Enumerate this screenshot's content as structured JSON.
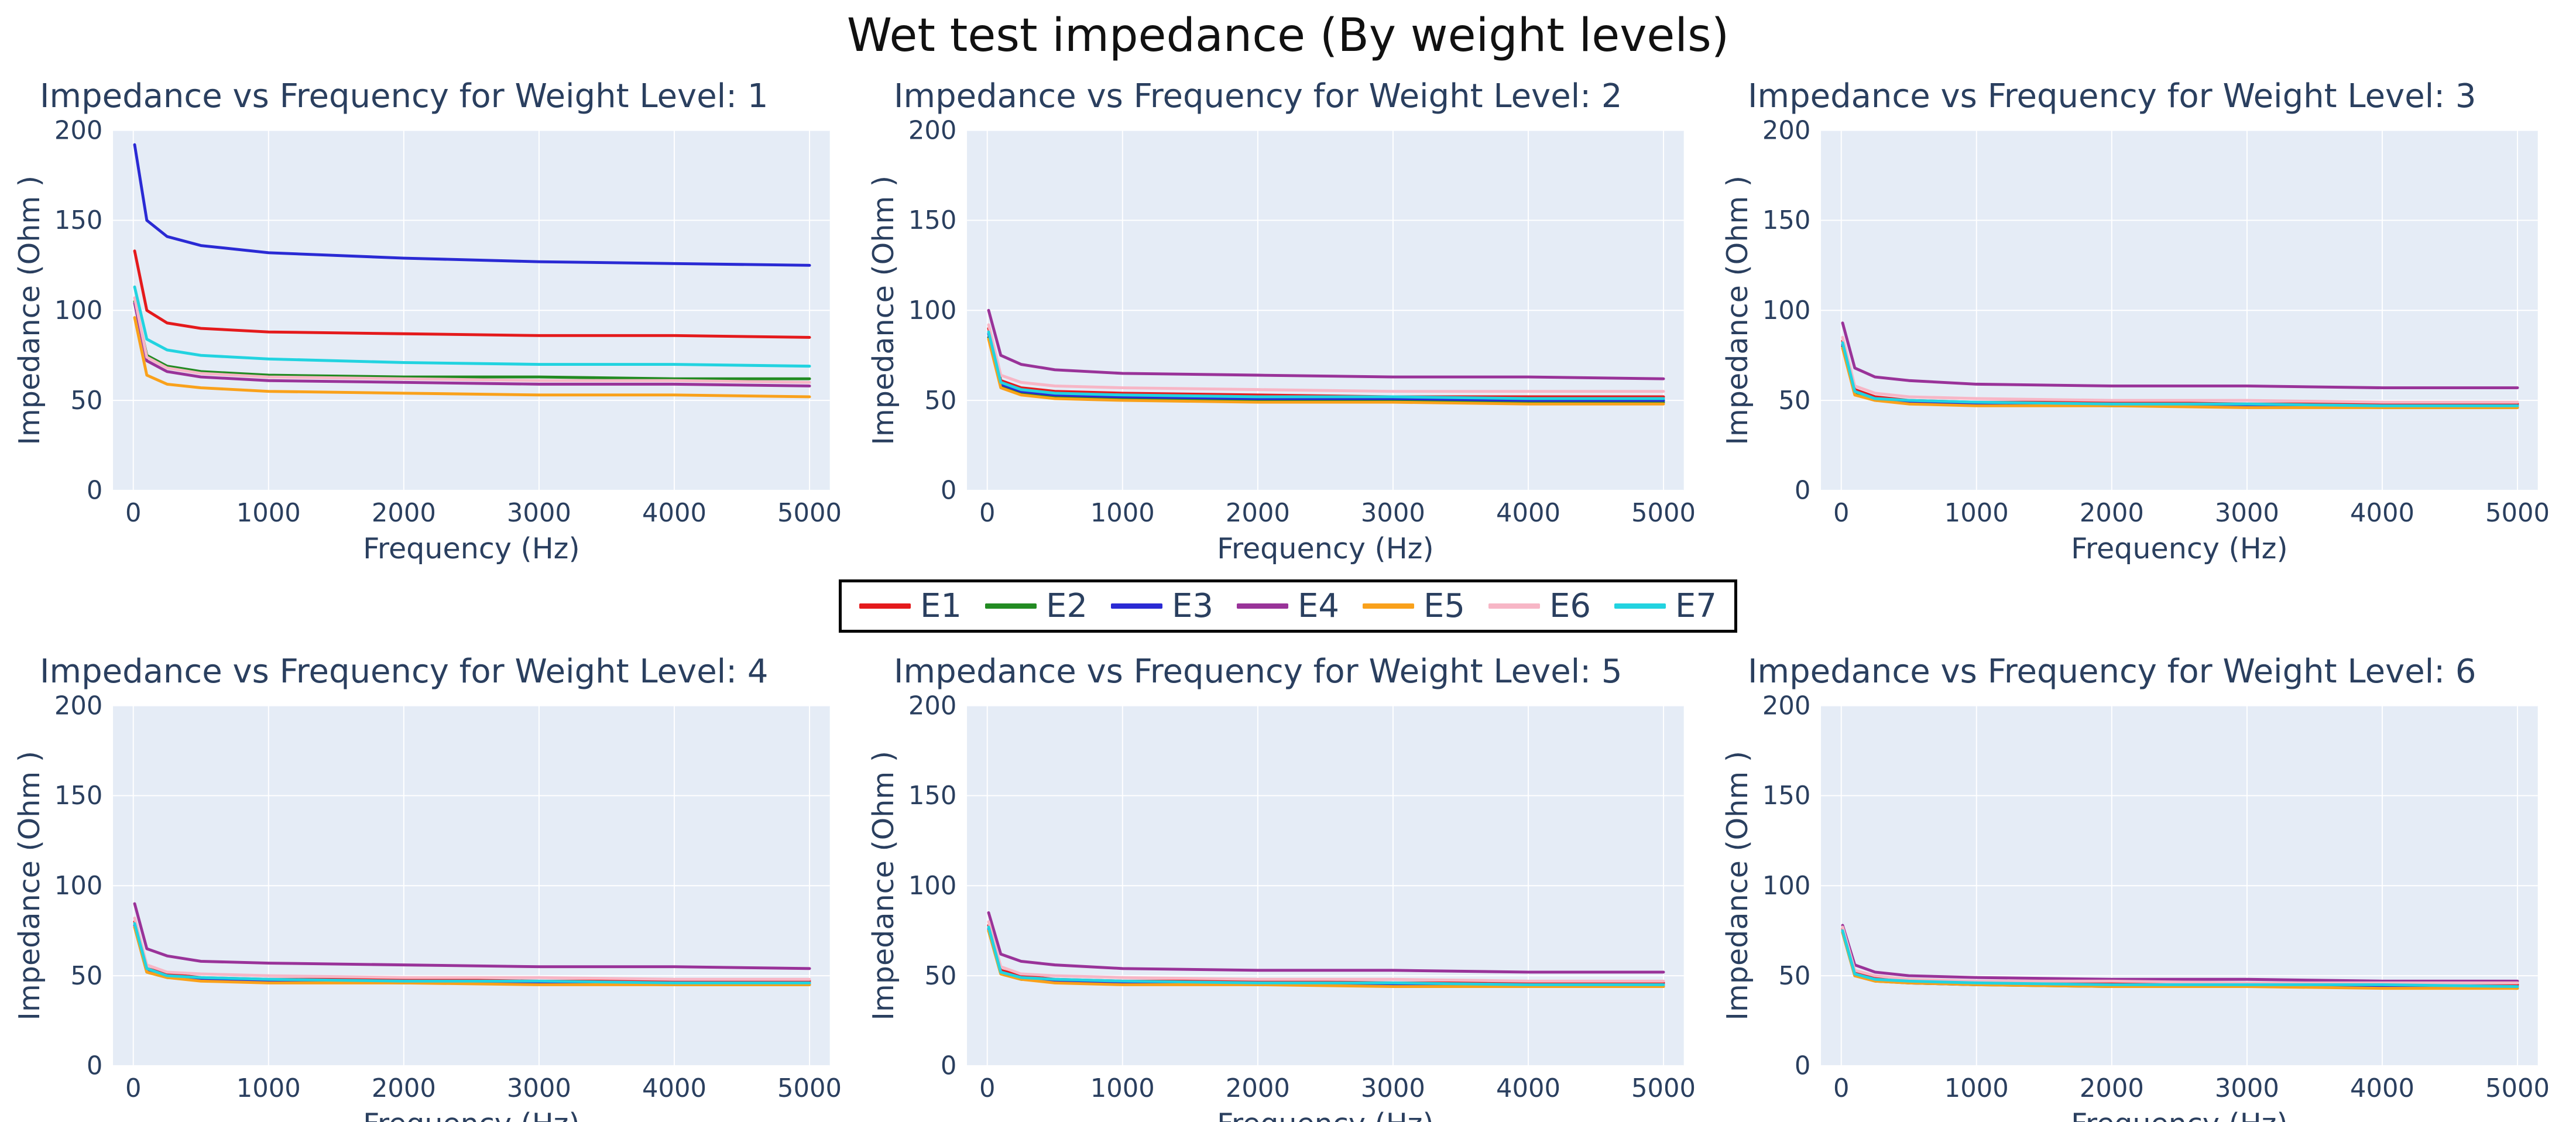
{
  "page_title": "Wet test impedance (By weight levels)",
  "colors": {
    "plot_bg": "#e5ecf6",
    "grid": "#ffffff",
    "axis_text": "#2a3f5f",
    "title_text": "#111111",
    "legend_border": "#000000"
  },
  "chart_data": {
    "type": "line",
    "title": "Wet test impedance (By weight levels)",
    "xlabel": "Frequency (Hz)",
    "ylabel": "Impedance (Ohm )",
    "x_ticks": [
      0,
      1000,
      2000,
      3000,
      4000,
      5000
    ],
    "y_ticks": [
      0,
      50,
      100,
      150,
      200
    ],
    "xlim": [
      -150,
      5150
    ],
    "ylim": [
      0,
      200
    ],
    "grid": true,
    "x": [
      10,
      100,
      250,
      500,
      1000,
      2000,
      3000,
      4000,
      5000
    ],
    "legend": {
      "position": "center-between-rows",
      "entries": [
        {
          "name": "E1",
          "color": "#e41a1c"
        },
        {
          "name": "E2",
          "color": "#228b22"
        },
        {
          "name": "E3",
          "color": "#2a2ad4"
        },
        {
          "name": "E4",
          "color": "#993399"
        },
        {
          "name": "E5",
          "color": "#f9a11b"
        },
        {
          "name": "E6",
          "color": "#f7b6c6"
        },
        {
          "name": "E7",
          "color": "#22d3e0"
        }
      ]
    },
    "subplots": [
      {
        "weight_level": 1,
        "title": "Impedance vs Frequency for Weight Level: 1",
        "series": [
          {
            "name": "E1",
            "values": [
              133,
              100,
              93,
              90,
              88,
              87,
              86,
              86,
              85
            ]
          },
          {
            "name": "E2",
            "values": [
              105,
              75,
              69,
              66,
              64,
              63,
              63,
              62,
              62
            ]
          },
          {
            "name": "E3",
            "values": [
              192,
              150,
              141,
              136,
              132,
              129,
              127,
              126,
              125
            ]
          },
          {
            "name": "E4",
            "values": [
              104,
              72,
              66,
              63,
              61,
              60,
              59,
              59,
              58
            ]
          },
          {
            "name": "E5",
            "values": [
              96,
              64,
              59,
              57,
              55,
              54,
              53,
              53,
              52
            ]
          },
          {
            "name": "E6",
            "values": [
              107,
              74,
              68,
              65,
              63,
              62,
              61,
              61,
              60
            ]
          },
          {
            "name": "E7",
            "values": [
              113,
              84,
              78,
              75,
              73,
              71,
              70,
              70,
              69
            ]
          }
        ]
      },
      {
        "weight_level": 2,
        "title": "Impedance vs Frequency for Weight Level: 2",
        "series": [
          {
            "name": "E1",
            "values": [
              90,
              61,
              57,
              55,
              54,
              53,
              52,
              52,
              52
            ]
          },
          {
            "name": "E2",
            "values": [
              85,
              58,
              54,
              52,
              51,
              50,
              50,
              49,
              49
            ]
          },
          {
            "name": "E3",
            "values": [
              87,
              59,
              55,
              53,
              52,
              51,
              51,
              50,
              50
            ]
          },
          {
            "name": "E4",
            "values": [
              100,
              75,
              70,
              67,
              65,
              64,
              63,
              63,
              62
            ]
          },
          {
            "name": "E5",
            "values": [
              84,
              57,
              53,
              51,
              50,
              49,
              49,
              48,
              48
            ]
          },
          {
            "name": "E6",
            "values": [
              92,
              64,
              60,
              58,
              57,
              56,
              55,
              55,
              55
            ]
          },
          {
            "name": "E7",
            "values": [
              88,
              60,
              56,
              54,
              53,
              52,
              52,
              51,
              51
            ]
          }
        ]
      },
      {
        "weight_level": 3,
        "title": "Impedance vs Frequency for Weight Level: 3",
        "series": [
          {
            "name": "E1",
            "values": [
              83,
              56,
              52,
              50,
              49,
              49,
              48,
              48,
              48
            ]
          },
          {
            "name": "E2",
            "values": [
              80,
              54,
              50,
              49,
              48,
              47,
              47,
              46,
              46
            ]
          },
          {
            "name": "E3",
            "values": [
              81,
              55,
              51,
              49,
              48,
              48,
              47,
              47,
              47
            ]
          },
          {
            "name": "E4",
            "values": [
              93,
              68,
              63,
              61,
              59,
              58,
              58,
              57,
              57
            ]
          },
          {
            "name": "E5",
            "values": [
              79,
              53,
              50,
              48,
              47,
              47,
              46,
              46,
              46
            ]
          },
          {
            "name": "E6",
            "values": [
              85,
              58,
              54,
              52,
              51,
              50,
              50,
              49,
              49
            ]
          },
          {
            "name": "E7",
            "values": [
              82,
              55,
              51,
              50,
              49,
              48,
              48,
              47,
              47
            ]
          }
        ]
      },
      {
        "weight_level": 4,
        "title": "Impedance vs Frequency for Weight Level: 4",
        "series": [
          {
            "name": "E1",
            "values": [
              80,
              54,
              51,
              49,
              48,
              48,
              47,
              47,
              47
            ]
          },
          {
            "name": "E2",
            "values": [
              77,
              52,
              49,
              48,
              47,
              46,
              46,
              45,
              45
            ]
          },
          {
            "name": "E3",
            "values": [
              78,
              53,
              50,
              48,
              47,
              47,
              46,
              46,
              46
            ]
          },
          {
            "name": "E4",
            "values": [
              90,
              65,
              61,
              58,
              57,
              56,
              55,
              55,
              54
            ]
          },
          {
            "name": "E5",
            "values": [
              77,
              52,
              49,
              47,
              46,
              46,
              45,
              45,
              45
            ]
          },
          {
            "name": "E6",
            "values": [
              82,
              56,
              52,
              51,
              50,
              49,
              49,
              48,
              48
            ]
          },
          {
            "name": "E7",
            "values": [
              79,
              54,
              50,
              49,
              48,
              47,
              47,
              46,
              46
            ]
          }
        ]
      },
      {
        "weight_level": 5,
        "title": "Impedance vs Frequency for Weight Level: 5",
        "series": [
          {
            "name": "E1",
            "values": [
              78,
              53,
              50,
              48,
              47,
              47,
              46,
              46,
              46
            ]
          },
          {
            "name": "E2",
            "values": [
              75,
              51,
              48,
              47,
              46,
              45,
              45,
              44,
              44
            ]
          },
          {
            "name": "E3",
            "values": [
              76,
              52,
              49,
              47,
              46,
              46,
              45,
              45,
              45
            ]
          },
          {
            "name": "E4",
            "values": [
              85,
              62,
              58,
              56,
              54,
              53,
              53,
              52,
              52
            ]
          },
          {
            "name": "E5",
            "values": [
              75,
              51,
              48,
              46,
              45,
              45,
              44,
              44,
              44
            ]
          },
          {
            "name": "E6",
            "values": [
              80,
              55,
              51,
              50,
              49,
              48,
              48,
              47,
              47
            ]
          },
          {
            "name": "E7",
            "values": [
              77,
              52,
              49,
              48,
              47,
              46,
              46,
              45,
              45
            ]
          }
        ]
      },
      {
        "weight_level": 6,
        "title": "Impedance vs Frequency for Weight Level: 6",
        "series": [
          {
            "name": "E1",
            "values": [
              76,
              52,
              49,
              47,
              46,
              46,
              45,
              45,
              45
            ]
          },
          {
            "name": "E2",
            "values": [
              74,
              50,
              47,
              46,
              45,
              44,
              44,
              44,
              43
            ]
          },
          {
            "name": "E3",
            "values": [
              75,
              51,
              48,
              46,
              45,
              45,
              44,
              44,
              44
            ]
          },
          {
            "name": "E4",
            "values": [
              78,
              56,
              52,
              50,
              49,
              48,
              48,
              47,
              47
            ]
          },
          {
            "name": "E5",
            "values": [
              74,
              50,
              47,
              46,
              45,
              44,
              44,
              43,
              43
            ]
          },
          {
            "name": "E6",
            "values": [
              77,
              53,
              50,
              48,
              47,
              47,
              46,
              46,
              46
            ]
          },
          {
            "name": "E7",
            "values": [
              75,
              51,
              48,
              47,
              46,
              45,
              45,
              45,
              44
            ]
          }
        ]
      }
    ]
  }
}
